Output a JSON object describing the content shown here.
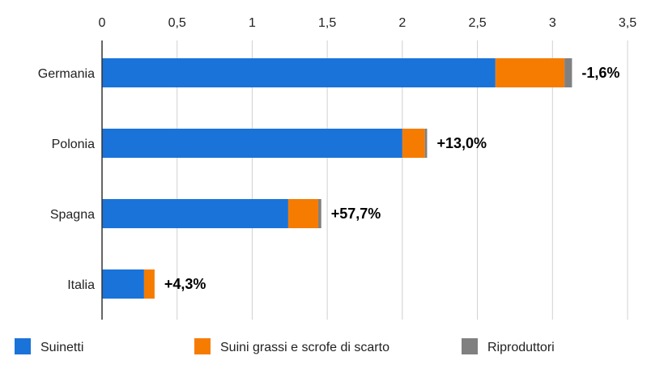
{
  "chart_data": {
    "type": "bar",
    "orientation": "horizontal",
    "stacked": true,
    "categories": [
      "Germania",
      "Polonia",
      "Spagna",
      "Italia"
    ],
    "series": [
      {
        "name": "Suinetti",
        "color": "#1a73d9",
        "values": [
          2.62,
          2.0,
          1.24,
          0.28
        ]
      },
      {
        "name": "Suini grassi e scrofe di scarto",
        "color": "#f57c00",
        "values": [
          0.46,
          0.15,
          0.2,
          0.07
        ]
      },
      {
        "name": "Riproduttori",
        "color": "#808080",
        "values": [
          0.05,
          0.015,
          0.02,
          0.0
        ]
      }
    ],
    "data_labels": [
      "-1,6%",
      "+13,0%",
      "+57,7%",
      "+4,3%"
    ],
    "x_ticks": [
      "0",
      "0,5",
      "1",
      "1,5",
      "2",
      "2,5",
      "3",
      "3,5"
    ],
    "xlim": [
      0,
      3.5
    ],
    "x_axis_position": "top",
    "grid": true,
    "legend_position": "bottom"
  }
}
